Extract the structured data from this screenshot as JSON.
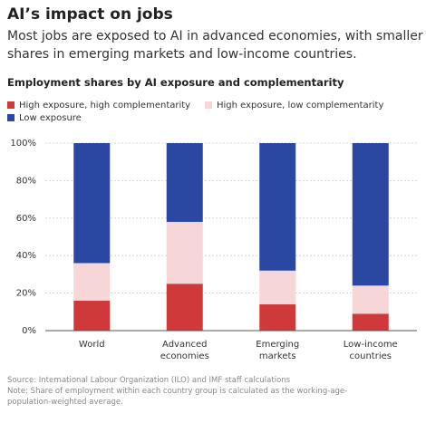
{
  "chart_data": {
    "type": "stacked_bar",
    "title": "AI’s impact on jobs",
    "subtitle": "Most jobs are exposed to AI in advanced economies, with smaller shares in emerging markets and low-income countries.",
    "chart_title": "Employment shares by AI exposure and complementarity",
    "categories": [
      "World",
      "Advanced economies",
      "Emerging markets",
      "Low-income countries"
    ],
    "series": [
      {
        "name": "High exposure, high complementarity",
        "color": "#d0393a",
        "values": [
          16,
          25,
          14,
          9
        ]
      },
      {
        "name": "High exposure, low complementarity",
        "color": "#f6d6d6",
        "values": [
          20,
          33,
          18,
          15
        ]
      },
      {
        "name": "Low exposure",
        "color": "#2a47a2",
        "values": [
          64,
          42,
          68,
          76
        ]
      }
    ],
    "ylim": [
      0,
      100
    ],
    "yticks": [
      {
        "value": 0,
        "label": "0%"
      },
      {
        "value": 20,
        "label": "20%"
      },
      {
        "value": 40,
        "label": "40%"
      },
      {
        "value": 60,
        "label": "60%"
      },
      {
        "value": 80,
        "label": "80%"
      },
      {
        "value": 100,
        "label": "100%"
      }
    ],
    "grid": true,
    "source": "Source: International Labour Organization (ILO) and IMF staff calculations",
    "note": "Note: Share of employment within each country group is calculated as the working-age-population-weighted average."
  }
}
